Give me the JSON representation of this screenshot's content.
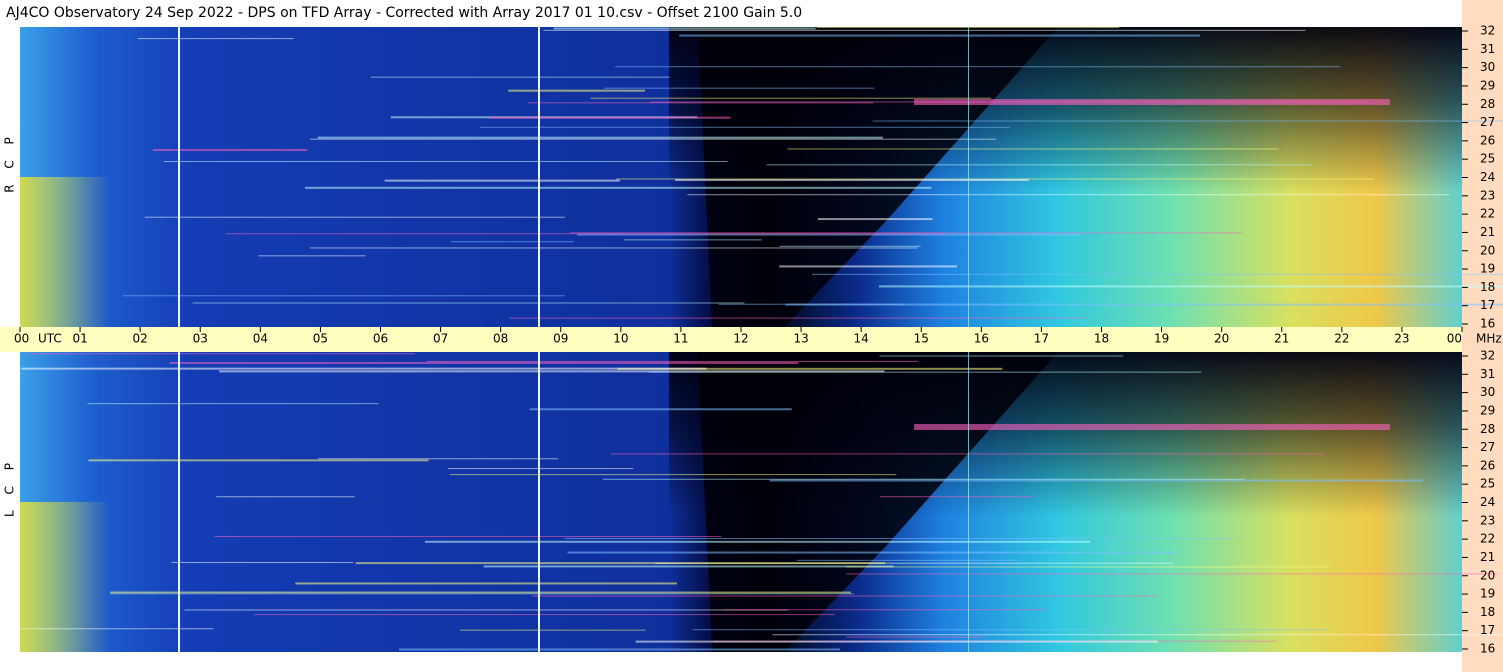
{
  "chart_data": {
    "type": "spectrogram",
    "title": "AJ4CO Observatory  24 Sep 2022  -  DPS on TFD Array  -  Corrected with Array 2017 01 10.csv  -  Offset 2100  Gain 5.0",
    "x_unit": "UTC",
    "y_unit": "MHz",
    "panels": [
      {
        "label": "R C P"
      },
      {
        "label": "L C P"
      }
    ],
    "xlim": [
      0,
      24
    ],
    "xticks": [
      {
        "value": 0,
        "label": "00"
      },
      {
        "value": 1,
        "label": "01"
      },
      {
        "value": 2,
        "label": "02"
      },
      {
        "value": 3,
        "label": "03"
      },
      {
        "value": 4,
        "label": "04"
      },
      {
        "value": 5,
        "label": "05"
      },
      {
        "value": 6,
        "label": "06"
      },
      {
        "value": 7,
        "label": "07"
      },
      {
        "value": 8,
        "label": "08"
      },
      {
        "value": 9,
        "label": "09"
      },
      10,
      11,
      12,
      13,
      14,
      15,
      16,
      17,
      18,
      19,
      20,
      21,
      22,
      23,
      {
        "value": 24,
        "label": "00"
      }
    ],
    "ylim": [
      16,
      32
    ],
    "yticks": [
      16,
      17,
      18,
      19,
      20,
      21,
      22,
      23,
      24,
      25,
      26,
      27,
      28,
      29,
      30,
      31,
      32
    ]
  }
}
